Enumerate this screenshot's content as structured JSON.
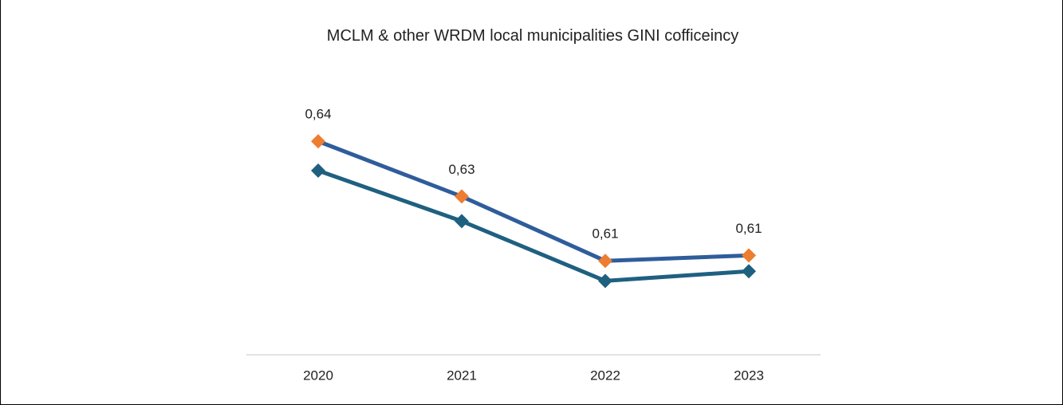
{
  "chart_data": {
    "type": "line",
    "title": "MCLM & other WRDM local municipalities GINI cofficeincy",
    "categories": [
      "2020",
      "2021",
      "2022",
      "2023"
    ],
    "series": [
      {
        "color": "#2f5d9b",
        "marker_color": "#ed7d31",
        "values": [
          0.643,
          0.6287,
          0.612,
          0.6134
        ],
        "value_labels": [
          "0,64",
          "0,63",
          "0,61",
          "0,61"
        ]
      },
      {
        "color": "#1f6080",
        "marker_color": "#1f6080",
        "values": [
          0.6354,
          0.6223,
          0.6068,
          0.6093
        ]
      }
    ],
    "ylim": [
      0.58,
      0.66
    ]
  }
}
